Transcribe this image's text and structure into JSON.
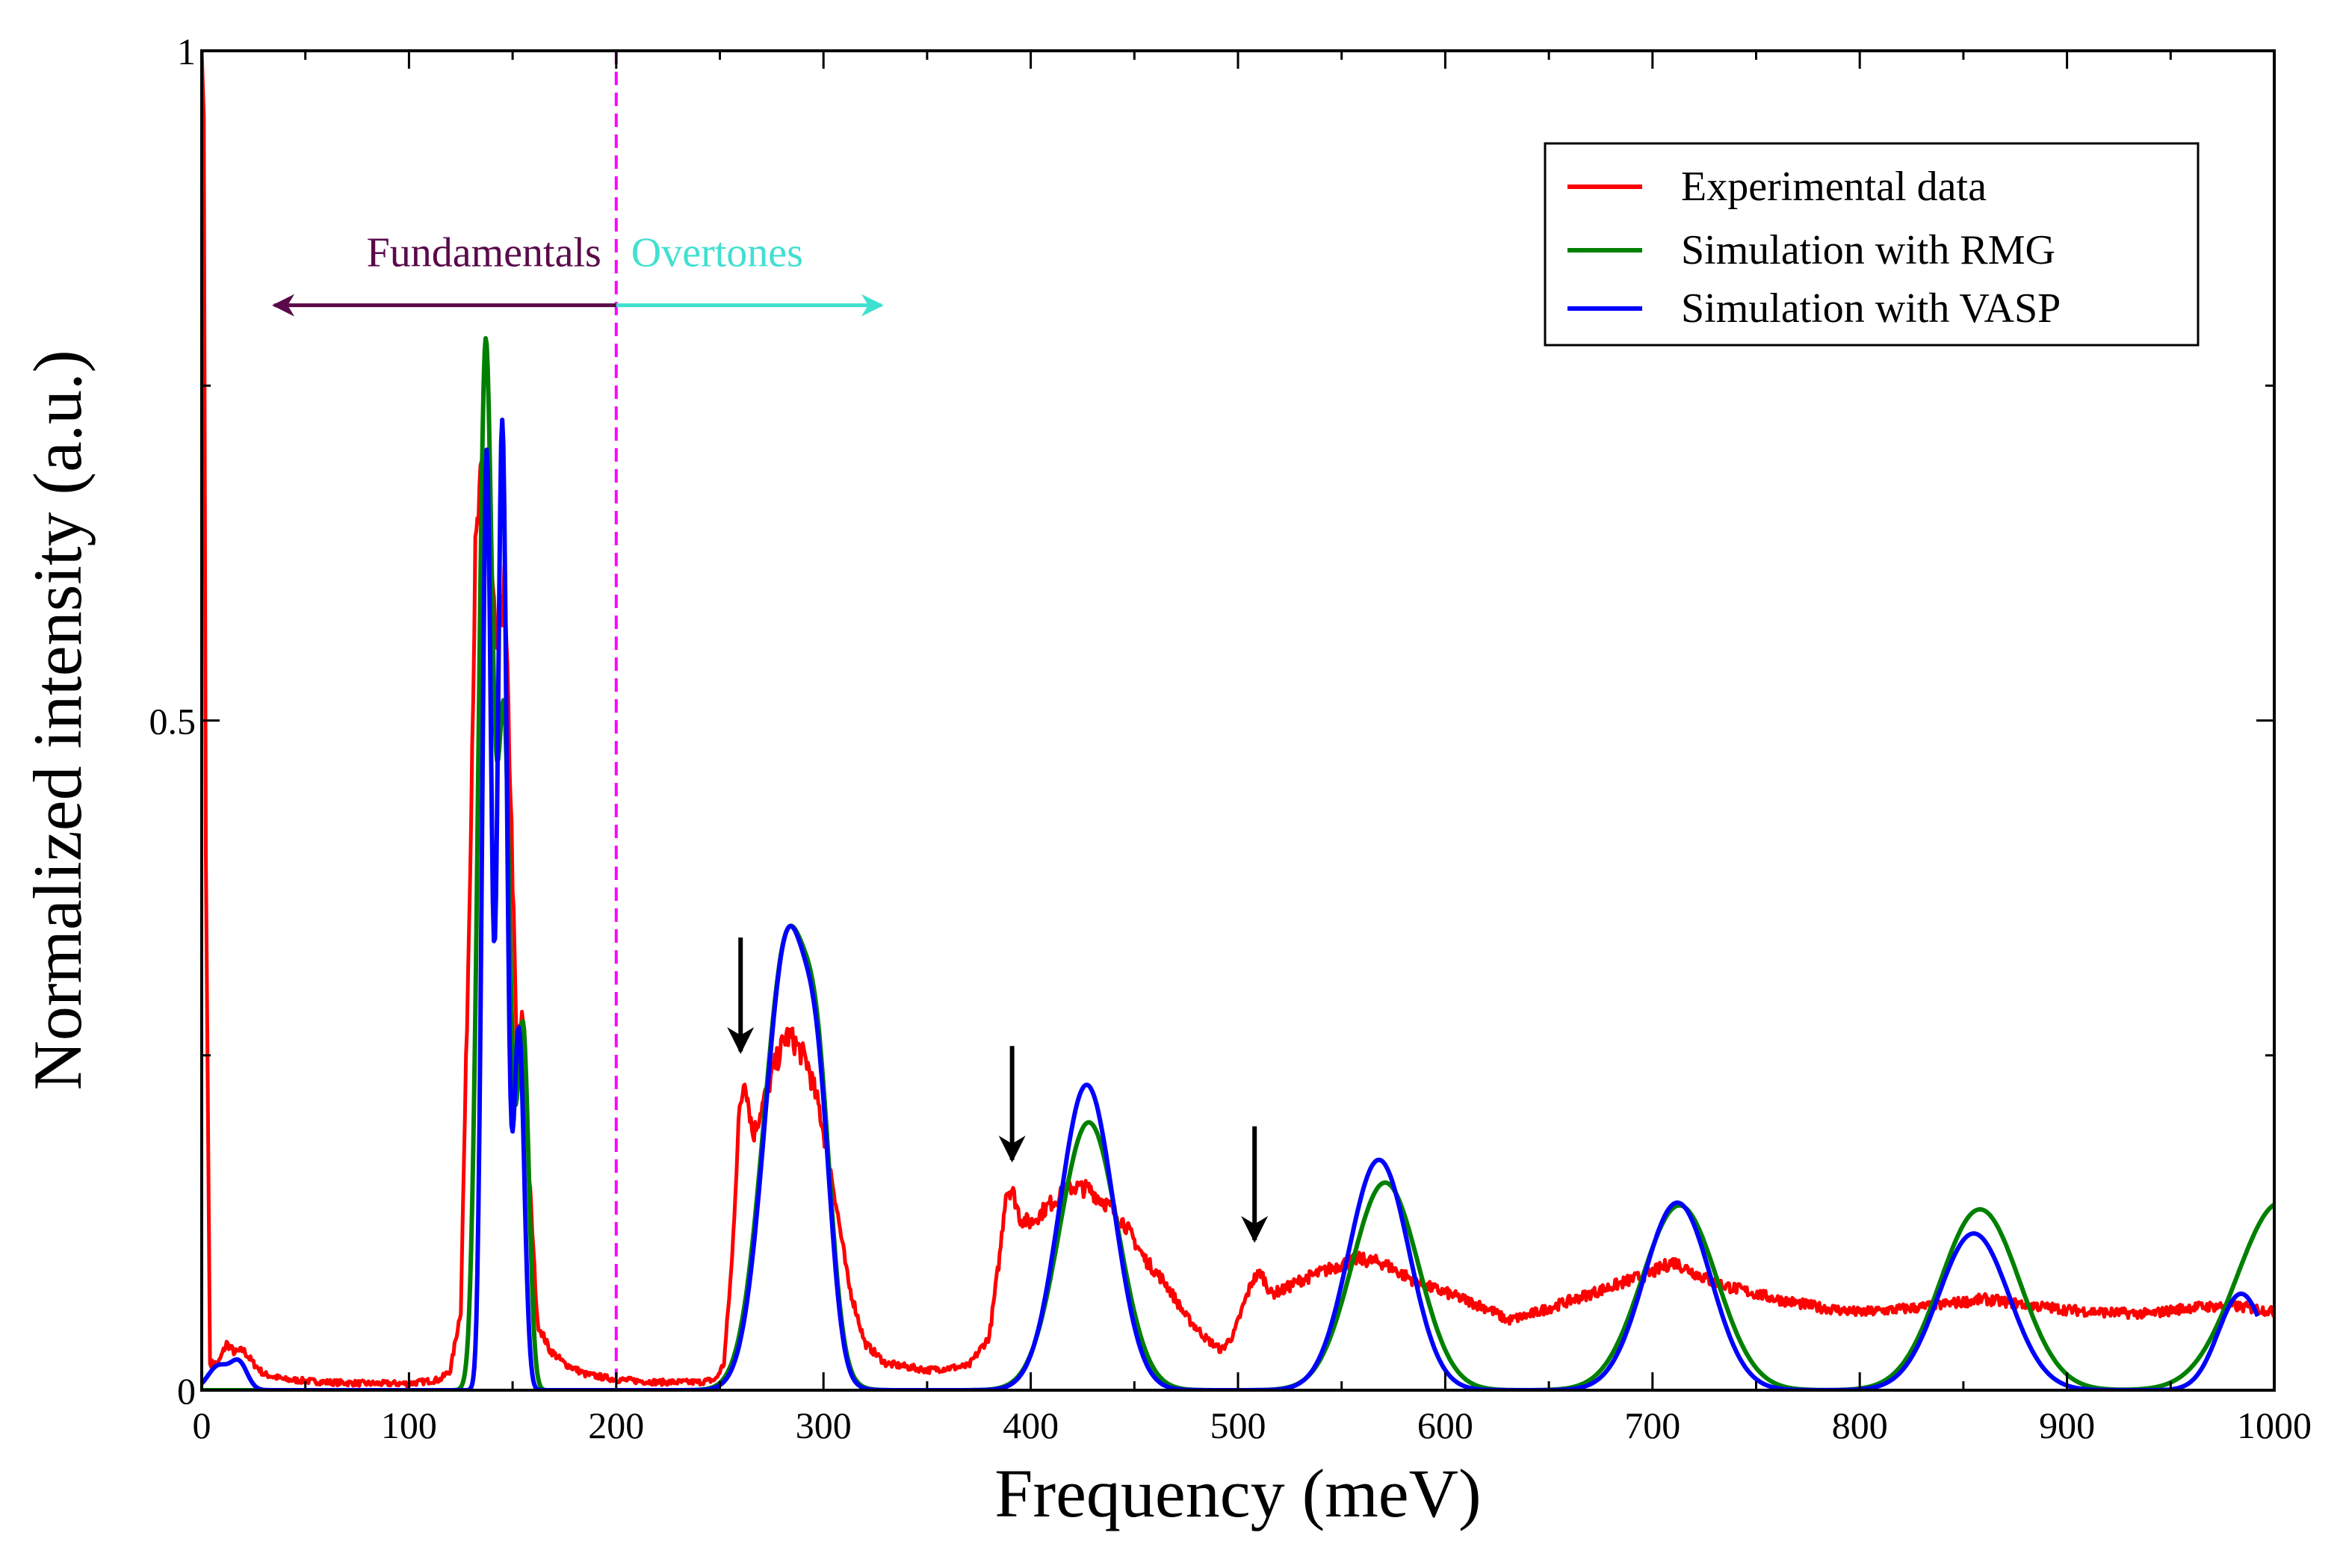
{
  "chart_data": {
    "type": "line",
    "title": "",
    "xlabel": "Frequency (meV)",
    "ylabel": "Normalized intensity (a.u.)",
    "xlim": [
      0,
      1000
    ],
    "ylim": [
      0,
      1
    ],
    "x_ticks": [
      0,
      100,
      200,
      300,
      400,
      500,
      600,
      700,
      800,
      900,
      1000
    ],
    "x_tick_labels": [
      "0",
      "100",
      "200",
      "300",
      "400",
      "500",
      "600",
      "700",
      "800",
      "900",
      "1000"
    ],
    "y_tick_labels": [
      {
        "value": 0,
        "label": "0"
      },
      {
        "value": 0.5,
        "label": "0.5"
      },
      {
        "value": 1,
        "label": "1"
      }
    ],
    "y_minor_ticks": [
      0.25,
      0.75
    ],
    "legend_position": "top-right",
    "grid": false,
    "series": [
      {
        "name": "Experimental data",
        "color": "#ff0000",
        "noisy": true,
        "points": [
          [
            0,
            1.0
          ],
          [
            1,
            0.95
          ],
          [
            2,
            0.4
          ],
          [
            4,
            0.02
          ],
          [
            8,
            0.02
          ],
          [
            12,
            0.035
          ],
          [
            16,
            0.028
          ],
          [
            20,
            0.03
          ],
          [
            25,
            0.02
          ],
          [
            30,
            0.012
          ],
          [
            40,
            0.008
          ],
          [
            60,
            0.006
          ],
          [
            80,
            0.005
          ],
          [
            100,
            0.005
          ],
          [
            115,
            0.008
          ],
          [
            120,
            0.015
          ],
          [
            125,
            0.06
          ],
          [
            129,
            0.35
          ],
          [
            132,
            0.62
          ],
          [
            135,
            0.68
          ],
          [
            138,
            0.66
          ],
          [
            142,
            0.55
          ],
          [
            146,
            0.6
          ],
          [
            149,
            0.45
          ],
          [
            152,
            0.25
          ],
          [
            155,
            0.28
          ],
          [
            158,
            0.16
          ],
          [
            162,
            0.05
          ],
          [
            168,
            0.03
          ],
          [
            175,
            0.02
          ],
          [
            185,
            0.012
          ],
          [
            200,
            0.008
          ],
          [
            220,
            0.006
          ],
          [
            240,
            0.006
          ],
          [
            248,
            0.008
          ],
          [
            252,
            0.02
          ],
          [
            256,
            0.1
          ],
          [
            259,
            0.2
          ],
          [
            262,
            0.235
          ],
          [
            266,
            0.19
          ],
          [
            270,
            0.21
          ],
          [
            276,
            0.24
          ],
          [
            282,
            0.265
          ],
          [
            286,
            0.26
          ],
          [
            292,
            0.245
          ],
          [
            298,
            0.21
          ],
          [
            305,
            0.15
          ],
          [
            312,
            0.08
          ],
          [
            320,
            0.035
          ],
          [
            330,
            0.02
          ],
          [
            350,
            0.015
          ],
          [
            370,
            0.018
          ],
          [
            380,
            0.04
          ],
          [
            385,
            0.1
          ],
          [
            388,
            0.148
          ],
          [
            391,
            0.15
          ],
          [
            395,
            0.128
          ],
          [
            400,
            0.125
          ],
          [
            410,
            0.14
          ],
          [
            420,
            0.152
          ],
          [
            428,
            0.15
          ],
          [
            436,
            0.14
          ],
          [
            445,
            0.125
          ],
          [
            455,
            0.098
          ],
          [
            465,
            0.08
          ],
          [
            475,
            0.055
          ],
          [
            485,
            0.038
          ],
          [
            492,
            0.03
          ],
          [
            498,
            0.042
          ],
          [
            503,
            0.065
          ],
          [
            507,
            0.082
          ],
          [
            511,
            0.088
          ],
          [
            516,
            0.072
          ],
          [
            522,
            0.075
          ],
          [
            530,
            0.082
          ],
          [
            540,
            0.088
          ],
          [
            550,
            0.094
          ],
          [
            558,
            0.098
          ],
          [
            570,
            0.095
          ],
          [
            580,
            0.086
          ],
          [
            590,
            0.078
          ],
          [
            600,
            0.073
          ],
          [
            612,
            0.066
          ],
          [
            622,
            0.06
          ],
          [
            630,
            0.052
          ],
          [
            640,
            0.056
          ],
          [
            655,
            0.064
          ],
          [
            670,
            0.072
          ],
          [
            685,
            0.08
          ],
          [
            700,
            0.088
          ],
          [
            710,
            0.096
          ],
          [
            720,
            0.088
          ],
          [
            730,
            0.08
          ],
          [
            745,
            0.074
          ],
          [
            760,
            0.068
          ],
          [
            780,
            0.062
          ],
          [
            800,
            0.058
          ],
          [
            830,
            0.062
          ],
          [
            860,
            0.068
          ],
          [
            880,
            0.064
          ],
          [
            900,
            0.06
          ],
          [
            920,
            0.058
          ],
          [
            940,
            0.057
          ],
          [
            960,
            0.062
          ],
          [
            980,
            0.063
          ],
          [
            995,
            0.06
          ],
          [
            1000,
            0.058
          ]
        ]
      },
      {
        "name": "Simulation with RMG",
        "color": "#008000",
        "peaks": [
          {
            "center": 137,
            "height": 0.78,
            "width": 3.5
          },
          {
            "center": 146,
            "height": 0.48,
            "width": 3
          },
          {
            "center": 155,
            "height": 0.27,
            "width": 2.8
          },
          {
            "center": 283,
            "height": 0.34,
            "width": 11.5
          },
          {
            "center": 298,
            "height": 0.12,
            "width": 6
          },
          {
            "center": 428,
            "height": 0.2,
            "width": 14
          },
          {
            "center": 571,
            "height": 0.155,
            "width": 16
          },
          {
            "center": 713,
            "height": 0.138,
            "width": 18
          },
          {
            "center": 858,
            "height": 0.135,
            "width": 19
          },
          {
            "center": 1003,
            "height": 0.14,
            "width": 21
          }
        ]
      },
      {
        "name": "Simulation with VASP",
        "color": "#0000ff",
        "peaks": [
          {
            "center": 137.5,
            "height": 0.7,
            "width": 2.2
          },
          {
            "center": 145,
            "height": 0.72,
            "width": 2.2
          },
          {
            "center": 153,
            "height": 0.27,
            "width": 2.6
          },
          {
            "center": 8,
            "height": 0.018,
            "width": 5
          },
          {
            "center": 18,
            "height": 0.02,
            "width": 4
          },
          {
            "center": 283,
            "height": 0.34,
            "width": 11
          },
          {
            "center": 298,
            "height": 0.12,
            "width": 6
          },
          {
            "center": 427,
            "height": 0.228,
            "width": 13
          },
          {
            "center": 568,
            "height": 0.172,
            "width": 14.5
          },
          {
            "center": 712,
            "height": 0.14,
            "width": 16
          },
          {
            "center": 855,
            "height": 0.117,
            "width": 17
          },
          {
            "center": 984,
            "height": 0.072,
            "width": 11
          }
        ],
        "x_max": 992
      }
    ],
    "annotations": {
      "divider": {
        "x": 200,
        "color": "#ff00ff"
      },
      "fundamentals": {
        "label": "Fundamentals",
        "color": "#5a0a4a",
        "arrow_from": 200,
        "arrow_to": 35,
        "y": 0.81
      },
      "overtones": {
        "label": "Overtones",
        "color": "#40e0d0",
        "arrow_from": 200,
        "arrow_to": 328,
        "y": 0.81
      },
      "down_arrows": [
        {
          "x": 260,
          "y_tip": 0.253,
          "y_tail": 0.338
        },
        {
          "x": 391,
          "y_tip": 0.172,
          "y_tail": 0.257
        },
        {
          "x": 508,
          "y_tip": 0.112,
          "y_tail": 0.197
        }
      ]
    }
  }
}
